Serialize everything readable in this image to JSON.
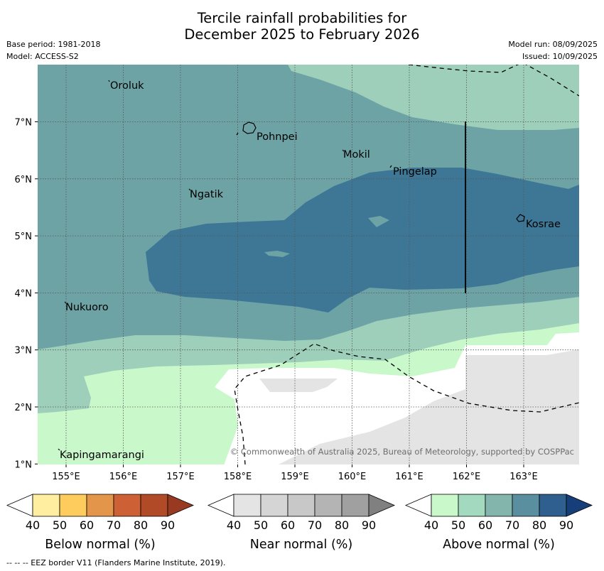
{
  "title_line1": "Tercile rainfall probabilities for",
  "title_line2": "December 2025 to February 2026",
  "base_period": "Base period: 1981-2018",
  "model": "Model: ACCESS-S2",
  "model_run": "Model run: 08/09/2025",
  "issued": "Issued: 10/09/2025",
  "map": {
    "lat_ticks": [
      "7°N",
      "6°N",
      "5°N",
      "4°N",
      "3°N",
      "2°N",
      "1°N"
    ],
    "lon_ticks": [
      "155°E",
      "156°E",
      "157°E",
      "158°E",
      "159°E",
      "160°E",
      "161°E",
      "162°E",
      "163°E"
    ],
    "places": [
      "Oroluk",
      "Pohnpei",
      "Mokil",
      "Pingelap",
      "Ngatik",
      "Kosrae",
      "Nukuoro",
      "Kapingamarangi"
    ],
    "copyright": "© Commonwealth of Australia 2025, Bureau of Meteorology, supported by COSPPac",
    "category_colors": {
      "above_50": "#c9f8cb",
      "above_60": "#9dcfba",
      "above_70": "#6ea3a6",
      "above_80": "#3e7795",
      "near_50": "#e4e4e4",
      "no_signal": "#ffffff"
    }
  },
  "colorbars": [
    {
      "title": "Below normal (%)",
      "labels": [
        "40",
        "50",
        "60",
        "70",
        "80",
        "90"
      ],
      "colors": [
        "#ffffff",
        "#ffeda0",
        "#fecc5c",
        "#e3954a",
        "#cd6135",
        "#b04a27",
        "#983a22"
      ]
    },
    {
      "title": "Near normal (%)",
      "labels": [
        "40",
        "50",
        "60",
        "70",
        "80",
        "90"
      ],
      "colors": [
        "#ffffff",
        "#e4e4e4",
        "#d5d5d5",
        "#c8c8c8",
        "#b4b4b4",
        "#a0a0a0",
        "#808080"
      ]
    },
    {
      "title": "Above normal (%)",
      "labels": [
        "40",
        "50",
        "60",
        "70",
        "80",
        "90"
      ],
      "colors": [
        "#ffffff",
        "#c9f8cb",
        "#a2d9bf",
        "#84b5ad",
        "#5a8fa0",
        "#2f5f8f",
        "#163f7a"
      ]
    }
  ],
  "footer": "-- -- -- EEZ border V11 (Flanders Marine Institute, 2019)."
}
